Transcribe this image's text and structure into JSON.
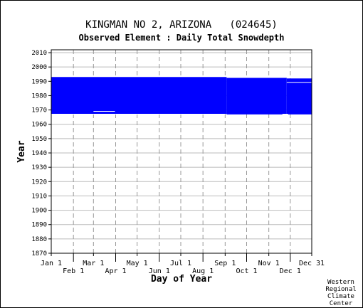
{
  "chart_data": {
    "type": "heatmap",
    "title": "KINGMAN NO 2, ARIZONA   (024645)",
    "subtitle": "Observed Element : Daily Total Snowdepth",
    "xlabel": "Day of Year",
    "ylabel": "Year",
    "x_ticks_upper": [
      {
        "label": "Jan 1",
        "day": 1
      },
      {
        "label": "Mar 1",
        "day": 60
      },
      {
        "label": "May 1",
        "day": 121
      },
      {
        "label": "Jul 1",
        "day": 182
      },
      {
        "label": "Sep 1",
        "day": 244
      },
      {
        "label": "Nov 1",
        "day": 305
      },
      {
        "label": "Dec 31",
        "day": 365
      }
    ],
    "x_ticks_lower": [
      {
        "label": "Feb 1",
        "day": 32
      },
      {
        "label": "Apr 1",
        "day": 91
      },
      {
        "label": "Jun 1",
        "day": 152
      },
      {
        "label": "Aug 1",
        "day": 213
      },
      {
        "label": "Oct 1",
        "day": 274
      },
      {
        "label": "Dec 1",
        "day": 335
      }
    ],
    "y_ticks": [
      1870,
      1880,
      1890,
      1900,
      1910,
      1920,
      1930,
      1940,
      1950,
      1960,
      1970,
      1980,
      1990,
      2000,
      2010
    ],
    "xlim": [
      1,
      365
    ],
    "ylim": [
      1870,
      2012
    ],
    "grid": true,
    "data_color": "#0000ff",
    "coverage": [
      {
        "day_start": 1,
        "day_end": 246,
        "year_start": 1967.3,
        "year_end": 1993.0
      },
      {
        "day_start": 246,
        "day_end": 330,
        "year_start": 1966.9,
        "year_end": 1992.4
      },
      {
        "day_start": 330,
        "day_end": 365,
        "year_start": 1966.9,
        "year_end": 1992.0
      }
    ],
    "gaps": [
      {
        "day_start": 60,
        "day_end": 90,
        "year_start": 1968.8,
        "year_end": 1969.3
      },
      {
        "day_start": 330,
        "day_end": 365,
        "year_start": 1989.0,
        "year_end": 1989.5
      },
      {
        "day_start": 324,
        "day_end": 332,
        "year_start": 1966.9,
        "year_end": 1967.3
      },
      {
        "day_start": 1,
        "day_end": 244,
        "year_start": 1966.9,
        "year_end": 1967.3
      }
    ]
  },
  "credit": [
    "Western",
    "Regional",
    "Climate",
    "Center"
  ]
}
